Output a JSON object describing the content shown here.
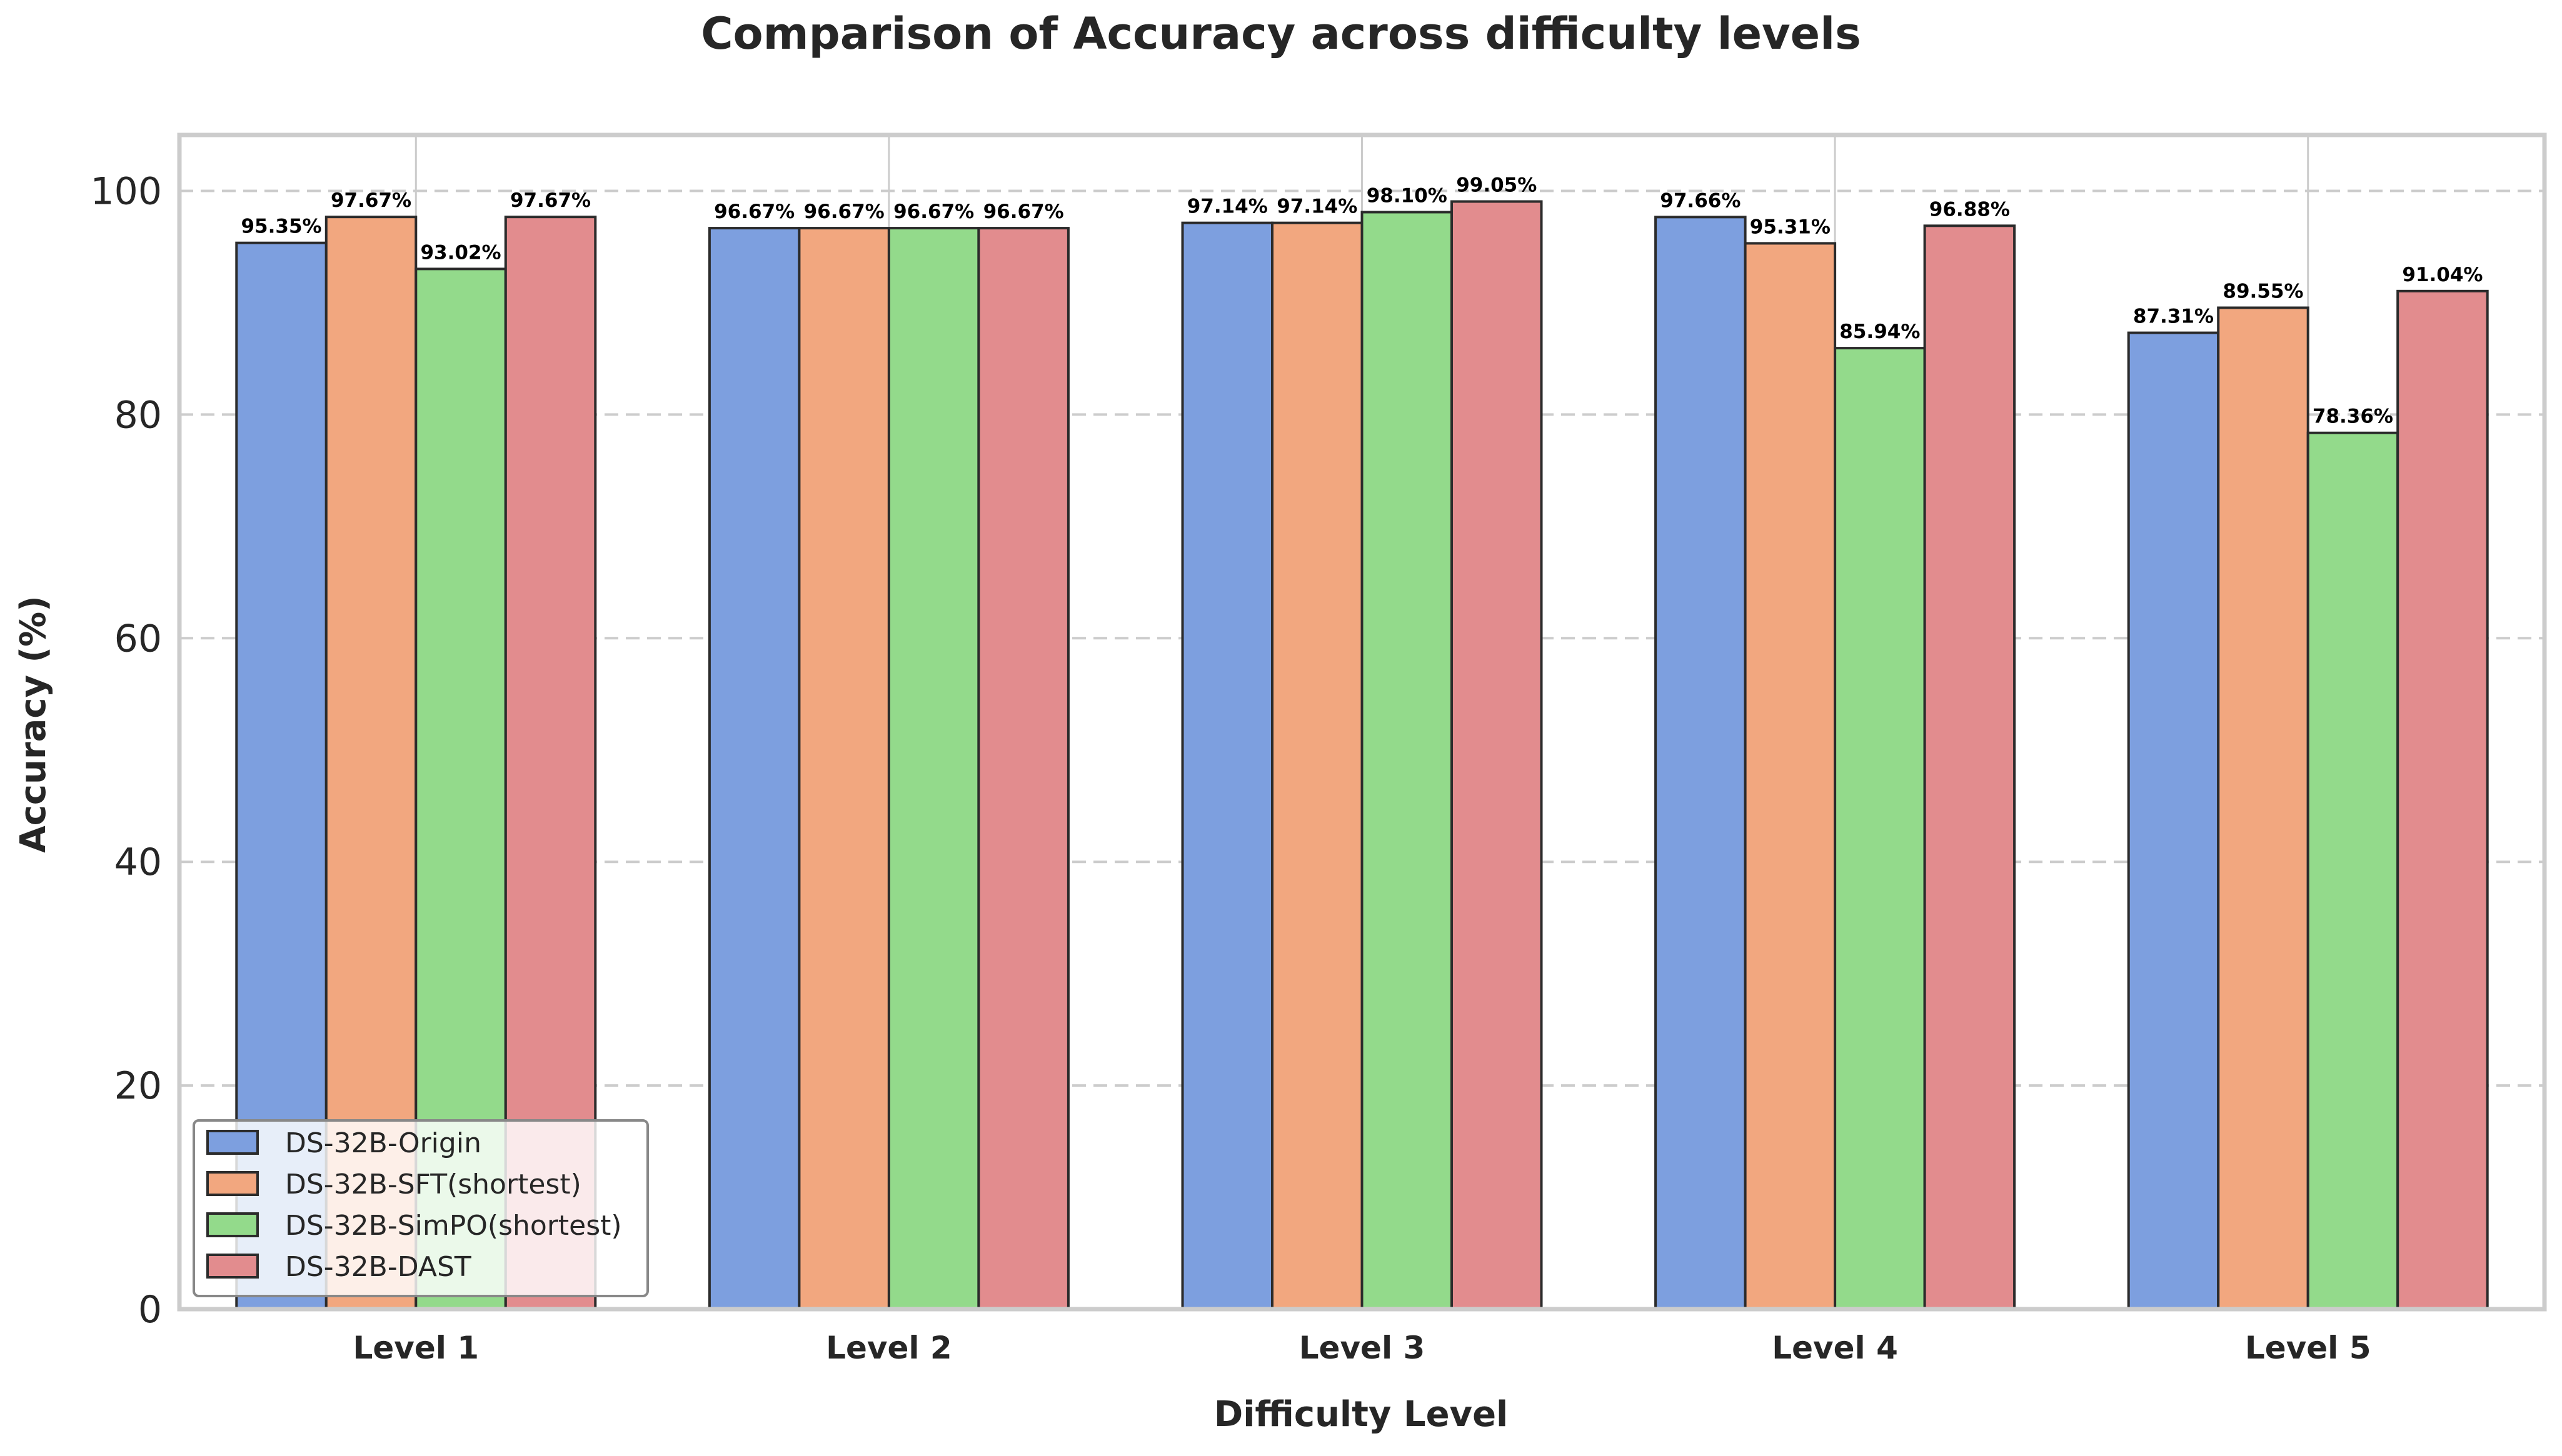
{
  "chart_data": {
    "type": "bar",
    "title": "Comparison of Accuracy across difficulty levels",
    "xlabel": "Difficulty Level",
    "ylabel": "Accuracy (%)",
    "categories": [
      "Level 1",
      "Level 2",
      "Level 3",
      "Level 4",
      "Level 5"
    ],
    "ylim": [
      0,
      105
    ],
    "yticks": [
      0,
      20,
      40,
      60,
      80,
      100
    ],
    "grid": true,
    "legend_position": "lower-left",
    "series": [
      {
        "name": "DS-32B-Origin",
        "color": "#7d9fdf",
        "values": [
          95.35,
          96.67,
          97.14,
          97.66,
          87.31
        ],
        "labels": [
          "95.35%",
          "96.67%",
          "97.14%",
          "97.66%",
          "87.31%"
        ]
      },
      {
        "name": "DS-32B-SFT(shortest)",
        "color": "#f2a77f",
        "values": [
          97.67,
          96.67,
          97.14,
          95.31,
          89.55
        ],
        "labels": [
          "97.67%",
          "96.67%",
          "97.14%",
          "95.31%",
          "89.55%"
        ]
      },
      {
        "name": "DS-32B-SimPO(shortest)",
        "color": "#93da8b",
        "values": [
          93.02,
          96.67,
          98.1,
          85.94,
          78.36
        ],
        "labels": [
          "93.02%",
          "96.67%",
          "98.10%",
          "85.94%",
          "78.36%"
        ]
      },
      {
        "name": "DS-32B-DAST",
        "color": "#e28c8e",
        "values": [
          97.67,
          96.67,
          99.05,
          96.88,
          91.04
        ],
        "labels": [
          "97.67%",
          "96.67%",
          "99.05%",
          "96.88%",
          "91.04%"
        ]
      }
    ]
  }
}
